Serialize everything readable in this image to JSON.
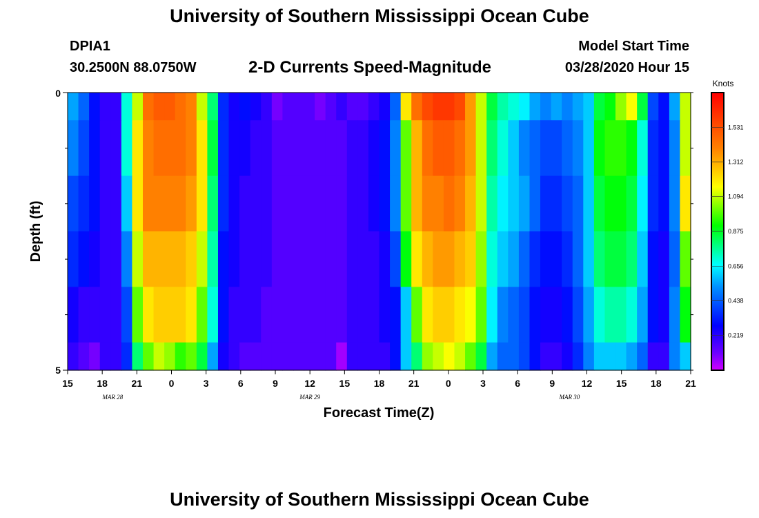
{
  "page": {
    "title": "University of Southern Mississippi Ocean Cube",
    "footer_title": "University of Southern Mississippi Ocean Cube",
    "station_id": "DPIA1",
    "station_coords": "30.2500N 88.0750W",
    "model_start_label": "Model Start Time",
    "model_start_value": "03/28/2020 Hour 15"
  },
  "chart_data": {
    "type": "heatmap",
    "title": "2-D Currents Speed-Magnitude",
    "xlabel": "Forecast Time(Z)",
    "ylabel": "Depth (ft)",
    "y_ticks": [
      "0",
      "5"
    ],
    "ylim": [
      0,
      5
    ],
    "x_tick_labels": [
      "15",
      "18",
      "21",
      "0",
      "3",
      "6",
      "9",
      "12",
      "15",
      "18",
      "21",
      "0",
      "3",
      "6",
      "9",
      "12",
      "15",
      "18",
      "21"
    ],
    "date_labels": [
      {
        "label": "MAR 28",
        "at_tick": 1.3
      },
      {
        "label": "MAR 29",
        "at_tick": 7
      },
      {
        "label": "MAR 30",
        "at_tick": 14.5
      }
    ],
    "xlim_hours": [
      0,
      54
    ],
    "depth_bands": [
      "0-0.5",
      "0.5-1.5",
      "1.5-2.5",
      "2.5-3.5",
      "3.5-4.5",
      "4.5-5"
    ],
    "series": [
      {
        "name": "0-0.5 ft",
        "values": [
          0.55,
          0.45,
          0.3,
          0.2,
          0.2,
          0.7,
          1.1,
          1.45,
          1.5,
          1.5,
          1.45,
          1.4,
          1.1,
          0.8,
          0.35,
          0.25,
          0.3,
          0.25,
          0.2,
          0.1,
          0.15,
          0.15,
          0.15,
          0.1,
          0.15,
          0.2,
          0.15,
          0.15,
          0.2,
          0.25,
          0.45,
          1.2,
          1.45,
          1.55,
          1.6,
          1.6,
          1.55,
          1.35,
          1.1,
          0.85,
          0.75,
          0.7,
          0.65,
          0.55,
          0.5,
          0.55,
          0.5,
          0.55,
          0.6,
          0.85,
          0.9,
          1.05,
          1.15,
          0.85,
          0.4,
          0.3,
          0.55,
          1.1
        ]
      },
      {
        "name": "0.5-1.5 ft",
        "values": [
          0.5,
          0.4,
          0.3,
          0.2,
          0.2,
          0.7,
          1.2,
          1.4,
          1.45,
          1.45,
          1.45,
          1.4,
          1.2,
          0.85,
          0.35,
          0.25,
          0.25,
          0.2,
          0.2,
          0.15,
          0.15,
          0.15,
          0.15,
          0.15,
          0.15,
          0.15,
          0.2,
          0.2,
          0.25,
          0.3,
          0.5,
          1.0,
          1.3,
          1.45,
          1.5,
          1.5,
          1.45,
          1.35,
          1.1,
          0.8,
          0.7,
          0.6,
          0.5,
          0.45,
          0.4,
          0.4,
          0.45,
          0.5,
          0.6,
          0.9,
          0.95,
          0.95,
          0.9,
          0.7,
          0.35,
          0.3,
          0.5,
          1.1
        ]
      },
      {
        "name": "1.5-2.5 ft",
        "values": [
          0.4,
          0.35,
          0.3,
          0.2,
          0.2,
          0.6,
          1.2,
          1.4,
          1.4,
          1.4,
          1.4,
          1.35,
          1.2,
          0.8,
          0.35,
          0.25,
          0.2,
          0.2,
          0.2,
          0.15,
          0.15,
          0.15,
          0.15,
          0.15,
          0.15,
          0.15,
          0.2,
          0.2,
          0.25,
          0.3,
          0.5,
          1.0,
          1.3,
          1.4,
          1.4,
          1.45,
          1.4,
          1.3,
          1.1,
          0.75,
          0.65,
          0.6,
          0.55,
          0.45,
          0.35,
          0.35,
          0.4,
          0.45,
          0.6,
          0.85,
          0.9,
          0.9,
          0.85,
          0.65,
          0.35,
          0.3,
          0.5,
          1.2
        ]
      },
      {
        "name": "2.5-3.5 ft",
        "values": [
          0.35,
          0.3,
          0.25,
          0.2,
          0.2,
          0.5,
          1.1,
          1.3,
          1.3,
          1.3,
          1.3,
          1.25,
          1.1,
          0.75,
          0.3,
          0.25,
          0.2,
          0.2,
          0.2,
          0.15,
          0.15,
          0.15,
          0.15,
          0.15,
          0.15,
          0.15,
          0.2,
          0.2,
          0.2,
          0.25,
          0.4,
          0.9,
          1.2,
          1.3,
          1.35,
          1.35,
          1.3,
          1.25,
          1.05,
          0.7,
          0.6,
          0.55,
          0.45,
          0.35,
          0.3,
          0.3,
          0.35,
          0.45,
          0.6,
          0.8,
          0.85,
          0.85,
          0.8,
          0.6,
          0.3,
          0.25,
          0.45,
          1.0
        ]
      },
      {
        "name": "3.5-4.5 ft",
        "values": [
          0.25,
          0.2,
          0.2,
          0.2,
          0.2,
          0.4,
          1.0,
          1.2,
          1.25,
          1.25,
          1.25,
          1.2,
          1.0,
          0.7,
          0.3,
          0.2,
          0.2,
          0.2,
          0.15,
          0.15,
          0.15,
          0.15,
          0.15,
          0.15,
          0.15,
          0.15,
          0.2,
          0.2,
          0.2,
          0.25,
          0.3,
          0.6,
          1.0,
          1.2,
          1.25,
          1.25,
          1.2,
          1.15,
          1.0,
          0.65,
          0.5,
          0.45,
          0.4,
          0.3,
          0.25,
          0.25,
          0.3,
          0.4,
          0.55,
          0.7,
          0.75,
          0.75,
          0.7,
          0.55,
          0.3,
          0.25,
          0.5,
          0.9
        ]
      },
      {
        "name": "4.5-5 ft",
        "values": [
          0.2,
          0.15,
          0.1,
          0.2,
          0.2,
          0.35,
          0.8,
          1.0,
          1.1,
          1.05,
          0.95,
          1.0,
          0.85,
          0.55,
          0.25,
          0.2,
          0.15,
          0.15,
          0.15,
          0.15,
          0.15,
          0.15,
          0.15,
          0.15,
          0.15,
          0.05,
          0.2,
          0.2,
          0.2,
          0.2,
          0.3,
          0.6,
          0.8,
          1.05,
          1.1,
          1.15,
          1.1,
          1.0,
          0.85,
          0.55,
          0.45,
          0.45,
          0.4,
          0.3,
          0.2,
          0.2,
          0.25,
          0.35,
          0.5,
          0.6,
          0.6,
          0.6,
          0.55,
          0.45,
          0.2,
          0.2,
          0.5,
          0.6
        ]
      }
    ],
    "colorbar": {
      "label": "Knots",
      "ticks": [
        "0.219",
        "0.438",
        "0.656",
        "0.875",
        "1.094",
        "1.312",
        "1.531"
      ],
      "min": 0.0,
      "max": 1.75
    }
  }
}
